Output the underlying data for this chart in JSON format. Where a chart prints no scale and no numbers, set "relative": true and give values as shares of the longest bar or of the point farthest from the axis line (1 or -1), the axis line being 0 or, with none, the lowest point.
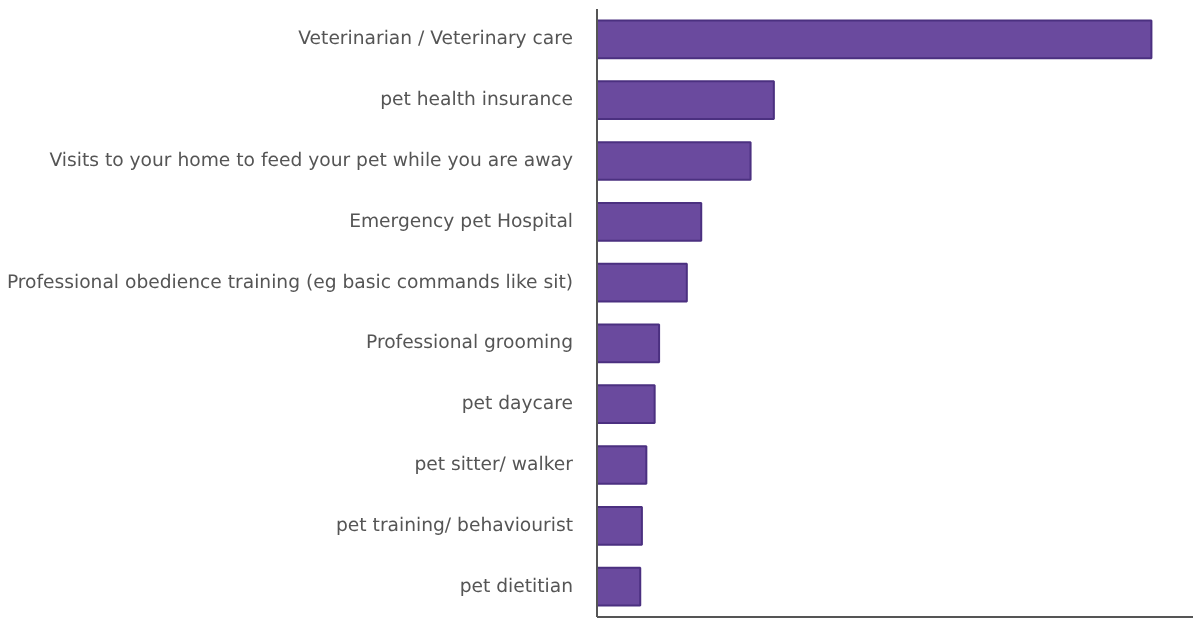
{
  "chart_data": {
    "type": "bar",
    "orientation": "horizontal",
    "relative": true,
    "categories": [
      "Veterinarian / Veterinary care",
      "pet health insurance",
      "Visits to your home to feed your pet while you are away",
      "Emergency pet Hospital",
      "Professional obedience training (eg basic commands like sit)",
      "Professional grooming",
      "pet daycare",
      "pet sitter/ walker",
      "pet training/ behaviourist",
      "pet dietitian"
    ],
    "values": [
      1,
      0.319,
      0.277,
      0.188,
      0.162,
      0.112,
      0.104,
      0.089,
      0.081,
      0.078
    ],
    "color": "#6a4a9e",
    "grid": false
  }
}
